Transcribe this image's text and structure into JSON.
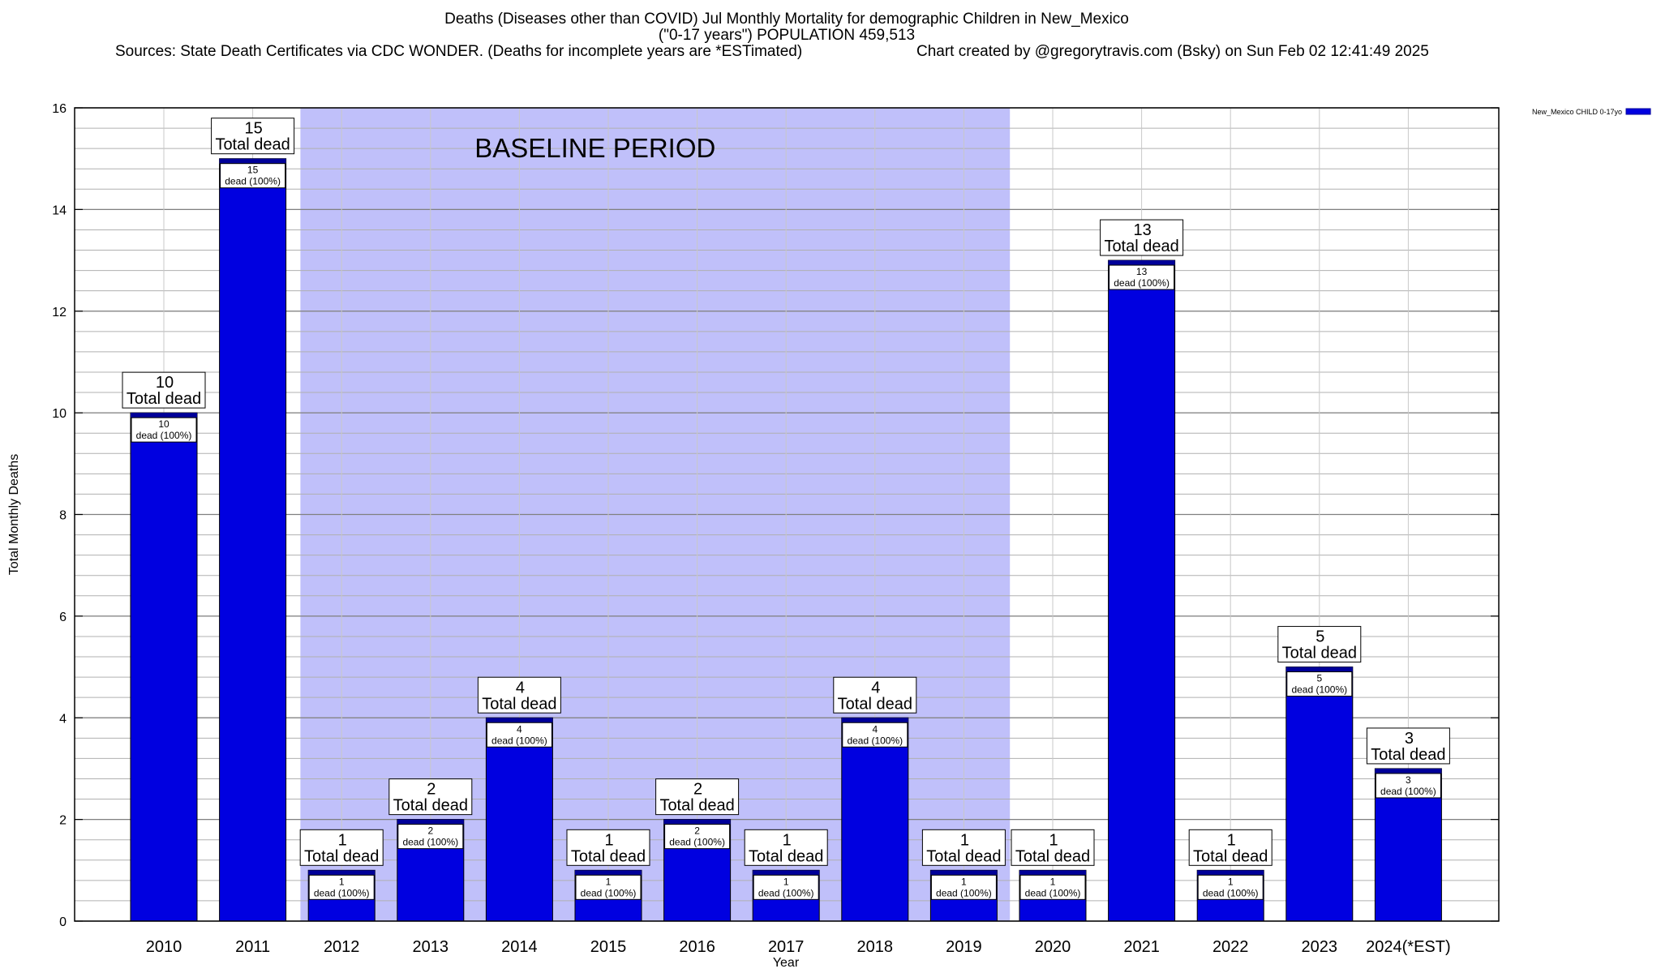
{
  "header": {
    "title_line1": "Deaths (Diseases other than COVID) Jul Monthly Mortality for demographic Children in New_Mexico",
    "title_line2": "(\"0-17 years\") POPULATION 459,513",
    "sources": "Sources: State Death Certificates via CDC WONDER. (Deaths for incomplete years are *ESTimated)",
    "credit": "Chart created by @gregorytravis.com (Bsky) on Sun Feb 02 12:41:49 2025"
  },
  "chart_data": {
    "type": "bar",
    "xlabel": "Year",
    "ylabel": "Total Monthly Deaths",
    "ylim": [
      0,
      16
    ],
    "yticks": [
      0,
      2,
      4,
      6,
      8,
      10,
      12,
      14,
      16
    ],
    "categories": [
      "2010",
      "2011",
      "2012",
      "2013",
      "2014",
      "2015",
      "2016",
      "2017",
      "2018",
      "2019",
      "2020",
      "2021",
      "2022",
      "2023",
      "2024(*EST)"
    ],
    "series": [
      {
        "name": "New_Mexico CHILD 0-17yo",
        "color": "#0000e0",
        "values": [
          10,
          15,
          1,
          2,
          4,
          1,
          2,
          1,
          4,
          1,
          1,
          13,
          1,
          5,
          3
        ]
      }
    ],
    "top_labels": [
      [
        "10",
        "Total dead"
      ],
      [
        "15",
        "Total dead"
      ],
      [
        "1",
        "Total dead"
      ],
      [
        "2",
        "Total dead"
      ],
      [
        "4",
        "Total dead"
      ],
      [
        "1",
        "Total dead"
      ],
      [
        "2",
        "Total dead"
      ],
      [
        "1",
        "Total dead"
      ],
      [
        "4",
        "Total dead"
      ],
      [
        "1",
        "Total dead"
      ],
      [
        "1",
        "Total dead"
      ],
      [
        "13",
        "Total dead"
      ],
      [
        "1",
        "Total dead"
      ],
      [
        "5",
        "Total dead"
      ],
      [
        "3",
        "Total dead"
      ]
    ],
    "inner_labels": [
      [
        "10",
        "dead (100%)"
      ],
      [
        "15",
        "dead (100%)"
      ],
      [
        "1",
        "dead (100%)"
      ],
      [
        "2",
        "dead (100%)"
      ],
      [
        "4",
        "dead (100%)"
      ],
      [
        "1",
        "dead (100%)"
      ],
      [
        "2",
        "dead (100%)"
      ],
      [
        "1",
        "dead (100%)"
      ],
      [
        "4",
        "dead (100%)"
      ],
      [
        "1",
        "dead (100%)"
      ],
      [
        "1",
        "dead (100%)"
      ],
      [
        "13",
        "dead (100%)"
      ],
      [
        "1",
        "dead (100%)"
      ],
      [
        "5",
        "dead (100%)"
      ],
      [
        "3",
        "dead (100%)"
      ]
    ],
    "baseline_period": {
      "label": "BASELINE PERIOD",
      "from_category": "2012",
      "to_category": "2019",
      "color": "#c0c0fa"
    },
    "grid": true,
    "legend_position": "top-right"
  }
}
